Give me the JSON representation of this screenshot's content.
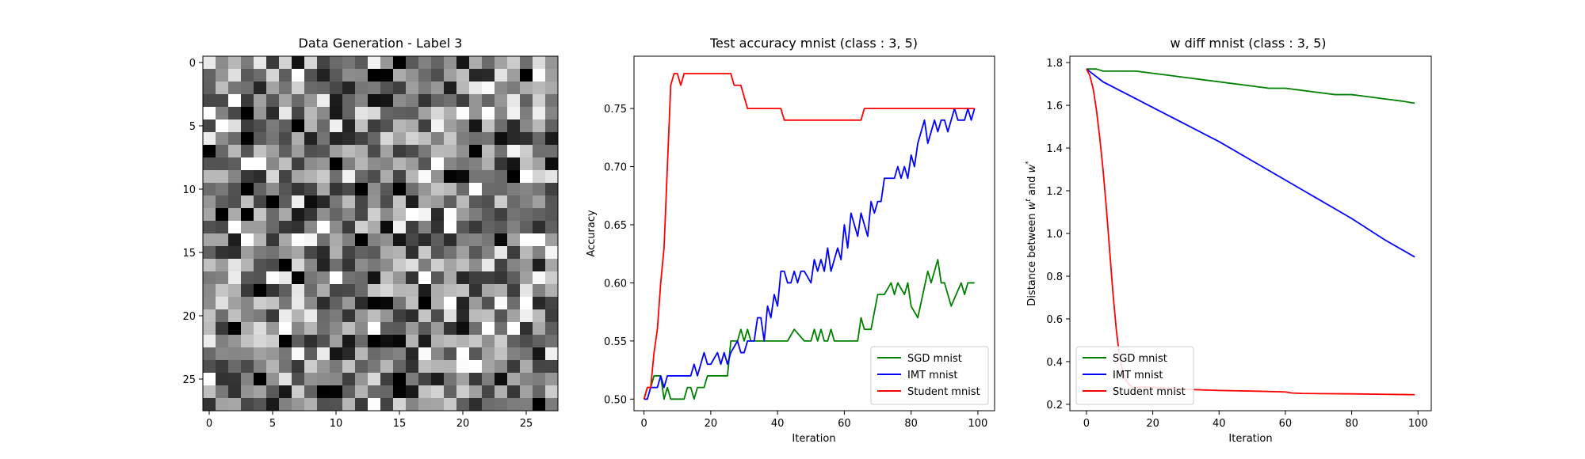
{
  "chart_data": [
    {
      "type": "heatmap",
      "title": "Data Generation - Label 3",
      "xlabel": "",
      "ylabel": "",
      "colormap": "gray",
      "xlim": [
        -0.5,
        27.5
      ],
      "ylim": [
        27.5,
        -0.5
      ],
      "xticks": [
        0,
        5,
        10,
        15,
        20,
        25
      ],
      "yticks": [
        0,
        5,
        10,
        15,
        20,
        25
      ],
      "rows": 28,
      "cols": 28,
      "value_range": [
        0,
        1
      ],
      "noise_seed": 3,
      "noise_description": "random gray values"
    },
    {
      "type": "line",
      "title": "Test accuracy mnist (class : 3, 5)",
      "xlabel": "Iteration",
      "ylabel": "Accuracy",
      "xlim": [
        -3,
        105
      ],
      "ylim": [
        0.49,
        0.795
      ],
      "xticks": [
        0,
        20,
        40,
        60,
        80,
        100
      ],
      "yticks": [
        0.5,
        0.55,
        0.6,
        0.65,
        0.7,
        0.75
      ],
      "ytick_labels": [
        "0.50",
        "0.55",
        "0.60",
        "0.65",
        "0.70",
        "0.75"
      ],
      "legend_position": "lower-right",
      "series": [
        {
          "name": "SGD mnist",
          "color": "#008000",
          "x": [
            0,
            1,
            2,
            3,
            4,
            5,
            6,
            7,
            8,
            9,
            10,
            12,
            13,
            14,
            15,
            16,
            18,
            19,
            20,
            22,
            25,
            26,
            28,
            29,
            30,
            31,
            32,
            35,
            40,
            43,
            45,
            48,
            50,
            51,
            52,
            53,
            54,
            55,
            56,
            57,
            58,
            60,
            62,
            64,
            65,
            66,
            67,
            68,
            70,
            72,
            74,
            75,
            76,
            78,
            79,
            80,
            82,
            85,
            86,
            88,
            89,
            90,
            92,
            95,
            96,
            97,
            98,
            99
          ],
          "y": [
            0.5,
            0.51,
            0.51,
            0.52,
            0.52,
            0.52,
            0.5,
            0.51,
            0.5,
            0.5,
            0.5,
            0.5,
            0.51,
            0.51,
            0.5,
            0.51,
            0.51,
            0.52,
            0.52,
            0.52,
            0.52,
            0.55,
            0.55,
            0.56,
            0.55,
            0.56,
            0.55,
            0.55,
            0.55,
            0.55,
            0.56,
            0.55,
            0.55,
            0.56,
            0.55,
            0.56,
            0.55,
            0.55,
            0.56,
            0.55,
            0.55,
            0.55,
            0.55,
            0.55,
            0.57,
            0.56,
            0.56,
            0.56,
            0.59,
            0.59,
            0.6,
            0.59,
            0.6,
            0.59,
            0.6,
            0.58,
            0.57,
            0.61,
            0.6,
            0.62,
            0.6,
            0.6,
            0.58,
            0.6,
            0.59,
            0.6,
            0.6,
            0.6
          ]
        },
        {
          "name": "IMT mnist",
          "color": "#0000ff",
          "x": [
            0,
            1,
            2,
            3,
            4,
            5,
            6,
            7,
            8,
            10,
            12,
            14,
            15,
            16,
            18,
            19,
            20,
            22,
            23,
            24,
            25,
            26,
            28,
            29,
            30,
            31,
            32,
            33,
            34,
            35,
            36,
            37,
            38,
            39,
            40,
            41,
            42,
            43,
            44,
            45,
            46,
            47,
            48,
            50,
            51,
            52,
            53,
            54,
            55,
            56,
            57,
            58,
            59,
            60,
            61,
            62,
            63,
            64,
            65,
            66,
            67,
            68,
            69,
            70,
            71,
            72,
            73,
            74,
            75,
            76,
            77,
            78,
            79,
            80,
            81,
            82,
            83,
            84,
            85,
            86,
            87,
            88,
            89,
            90,
            91,
            92,
            93,
            94,
            95,
            96,
            97,
            98,
            99
          ],
          "y": [
            0.5,
            0.5,
            0.51,
            0.51,
            0.51,
            0.52,
            0.51,
            0.52,
            0.52,
            0.52,
            0.52,
            0.52,
            0.53,
            0.52,
            0.54,
            0.53,
            0.53,
            0.54,
            0.53,
            0.54,
            0.53,
            0.54,
            0.55,
            0.54,
            0.54,
            0.55,
            0.55,
            0.55,
            0.57,
            0.57,
            0.55,
            0.58,
            0.57,
            0.59,
            0.58,
            0.61,
            0.61,
            0.6,
            0.6,
            0.61,
            0.6,
            0.61,
            0.61,
            0.6,
            0.62,
            0.61,
            0.62,
            0.61,
            0.63,
            0.61,
            0.62,
            0.63,
            0.62,
            0.65,
            0.63,
            0.66,
            0.65,
            0.64,
            0.66,
            0.65,
            0.64,
            0.67,
            0.66,
            0.67,
            0.67,
            0.69,
            0.69,
            0.69,
            0.69,
            0.7,
            0.69,
            0.7,
            0.69,
            0.71,
            0.7,
            0.72,
            0.73,
            0.74,
            0.72,
            0.73,
            0.74,
            0.73,
            0.74,
            0.74,
            0.73,
            0.74,
            0.75,
            0.74,
            0.74,
            0.74,
            0.75,
            0.74,
            0.75
          ]
        },
        {
          "name": "Student mnist",
          "color": "#ff0000",
          "x": [
            0,
            1,
            2,
            3,
            4,
            5,
            6,
            7,
            8,
            9,
            10,
            11,
            12,
            13,
            14,
            15,
            16,
            17,
            18,
            19,
            20,
            21,
            22,
            23,
            24,
            25,
            26,
            27,
            28,
            29,
            30,
            31,
            32,
            33,
            34,
            35,
            36,
            37,
            38,
            39,
            40,
            41,
            42,
            43,
            44,
            45,
            50,
            55,
            60,
            63,
            64,
            65,
            66,
            67,
            68,
            69,
            70,
            75,
            80,
            85,
            90,
            95,
            99
          ],
          "y": [
            0.5,
            0.51,
            0.51,
            0.54,
            0.56,
            0.6,
            0.63,
            0.7,
            0.77,
            0.78,
            0.78,
            0.77,
            0.78,
            0.78,
            0.78,
            0.78,
            0.78,
            0.78,
            0.78,
            0.78,
            0.78,
            0.78,
            0.78,
            0.78,
            0.78,
            0.78,
            0.78,
            0.77,
            0.77,
            0.77,
            0.76,
            0.75,
            0.75,
            0.75,
            0.75,
            0.75,
            0.75,
            0.75,
            0.75,
            0.75,
            0.75,
            0.75,
            0.74,
            0.74,
            0.74,
            0.74,
            0.74,
            0.74,
            0.74,
            0.74,
            0.74,
            0.74,
            0.75,
            0.75,
            0.75,
            0.75,
            0.75,
            0.75,
            0.75,
            0.75,
            0.75,
            0.75,
            0.75
          ]
        }
      ]
    },
    {
      "type": "line",
      "title": "w diff mnist (class : 3, 5)",
      "xlabel": "Iteration",
      "ylabel": "Distance between w^t and w^*",
      "ylabel_parts": {
        "prefix": "Distance between ",
        "w1": "w",
        "sup1": "t",
        "mid": " and ",
        "w2": "w",
        "sup2": "*"
      },
      "xlim": [
        -5,
        104
      ],
      "ylim": [
        0.17,
        1.83
      ],
      "xticks": [
        0,
        20,
        40,
        60,
        80,
        100
      ],
      "yticks": [
        0.2,
        0.4,
        0.6,
        0.8,
        1.0,
        1.2,
        1.4,
        1.6,
        1.8
      ],
      "ytick_labels": [
        "0.2",
        "0.4",
        "0.6",
        "0.8",
        "1.0",
        "1.2",
        "1.4",
        "1.6",
        "1.8"
      ],
      "legend_position": "lower-left",
      "series": [
        {
          "name": "SGD mnist",
          "color": "#008000",
          "x": [
            0,
            3,
            5,
            8,
            10,
            15,
            20,
            25,
            30,
            35,
            40,
            45,
            50,
            55,
            60,
            65,
            70,
            75,
            80,
            85,
            90,
            95,
            99
          ],
          "y": [
            1.77,
            1.77,
            1.76,
            1.76,
            1.76,
            1.76,
            1.75,
            1.74,
            1.73,
            1.72,
            1.71,
            1.7,
            1.69,
            1.68,
            1.68,
            1.67,
            1.66,
            1.65,
            1.65,
            1.64,
            1.63,
            1.62,
            1.61
          ]
        },
        {
          "name": "IMT mnist",
          "color": "#0000ff",
          "x": [
            0,
            5,
            10,
            15,
            20,
            30,
            40,
            50,
            60,
            70,
            80,
            90,
            99
          ],
          "y": [
            1.77,
            1.71,
            1.67,
            1.63,
            1.59,
            1.51,
            1.43,
            1.34,
            1.25,
            1.16,
            1.07,
            0.97,
            0.89
          ]
        },
        {
          "name": "Student mnist",
          "color": "#ff0000",
          "x": [
            0,
            1,
            2,
            3,
            4,
            5,
            6,
            7,
            8,
            9,
            10,
            11,
            12,
            13,
            14,
            15,
            20,
            30,
            40,
            50,
            60,
            62,
            65,
            70,
            80,
            90,
            99
          ],
          "y": [
            1.77,
            1.74,
            1.68,
            1.58,
            1.45,
            1.3,
            1.12,
            0.92,
            0.72,
            0.55,
            0.42,
            0.35,
            0.31,
            0.29,
            0.28,
            0.28,
            0.28,
            0.27,
            0.265,
            0.262,
            0.258,
            0.253,
            0.251,
            0.25,
            0.249,
            0.247,
            0.245
          ]
        }
      ]
    }
  ]
}
